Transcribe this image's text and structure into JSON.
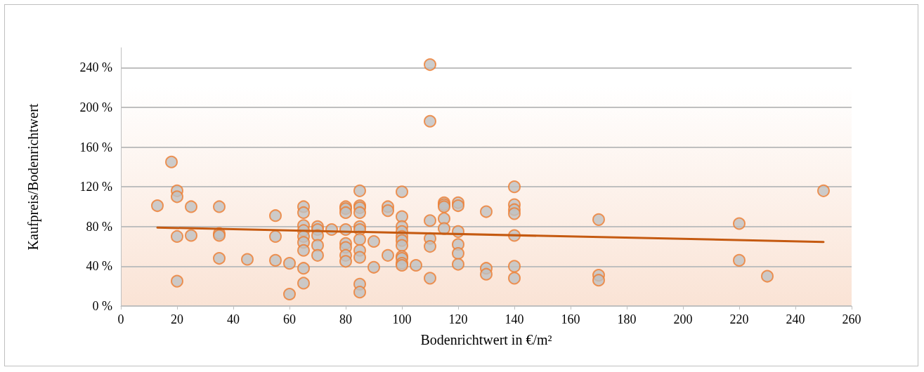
{
  "chart_data": {
    "type": "scatter",
    "xlabel": "Bodenrichtwert in €/m²",
    "ylabel": "Kaufpreis/Bodenrichtwert",
    "xlim": [
      0,
      260
    ],
    "xticks": [
      0,
      20,
      40,
      60,
      80,
      100,
      120,
      140,
      160,
      180,
      200,
      220,
      240,
      260
    ],
    "ylim": [
      0,
      260
    ],
    "yticks": [
      {
        "value": 0,
        "label": "0 %"
      },
      {
        "value": 40,
        "label": "40 %"
      },
      {
        "value": 80,
        "label": "80 %"
      },
      {
        "value": 120,
        "label": "120 %"
      },
      {
        "value": 160,
        "label": "160 %"
      },
      {
        "value": 200,
        "label": "200 %"
      },
      {
        "value": 240,
        "label": "240 %"
      }
    ],
    "grid": "y",
    "marker": "circle",
    "series": [
      {
        "color": "#c0c0c0",
        "x": [
          13,
          18,
          20,
          20,
          20,
          20,
          25,
          25,
          35,
          35,
          35,
          35,
          45,
          55,
          55,
          55,
          60,
          60,
          65,
          65,
          65,
          65,
          65,
          65,
          65,
          65,
          65,
          70,
          70,
          70,
          70,
          70,
          75,
          80,
          80,
          80,
          80,
          80,
          80,
          80,
          80,
          85,
          85,
          85,
          85,
          85,
          85,
          85,
          85,
          85,
          85,
          85,
          90,
          90,
          95,
          95,
          95,
          100,
          100,
          100,
          100,
          100,
          100,
          100,
          100,
          100,
          100,
          100,
          105,
          110,
          110,
          110,
          110,
          110,
          110,
          115,
          115,
          115,
          115,
          115,
          120,
          120,
          120,
          120,
          120,
          120,
          130,
          130,
          130,
          140,
          140,
          140,
          140,
          140,
          140,
          140,
          170,
          170,
          170,
          220,
          220,
          230,
          250
        ],
        "values": [
          101,
          145,
          116,
          110,
          70,
          25,
          100,
          71,
          100,
          73,
          71,
          48,
          47,
          91,
          70,
          46,
          43,
          12,
          100,
          94,
          81,
          76,
          70,
          64,
          56,
          38,
          23,
          80,
          77,
          71,
          61,
          51,
          77,
          100,
          98,
          94,
          77,
          63,
          59,
          51,
          45,
          116,
          101,
          99,
          94,
          80,
          77,
          67,
          56,
          49,
          22,
          14,
          65,
          39,
          100,
          96,
          51,
          115,
          90,
          80,
          75,
          70,
          66,
          61,
          50,
          48,
          43,
          41,
          41,
          243,
          186,
          86,
          68,
          60,
          28,
          104,
          102,
          100,
          88,
          78,
          104,
          101,
          75,
          62,
          53,
          42,
          95,
          38,
          32,
          120,
          102,
          97,
          93,
          71,
          40,
          28,
          87,
          31,
          26,
          83,
          46,
          30,
          116
        ]
      },
      {
        "type": "line",
        "color": "#c55a11",
        "marker": "none",
        "x": [
          13,
          250
        ],
        "values": [
          79,
          64.5
        ]
      }
    ]
  }
}
